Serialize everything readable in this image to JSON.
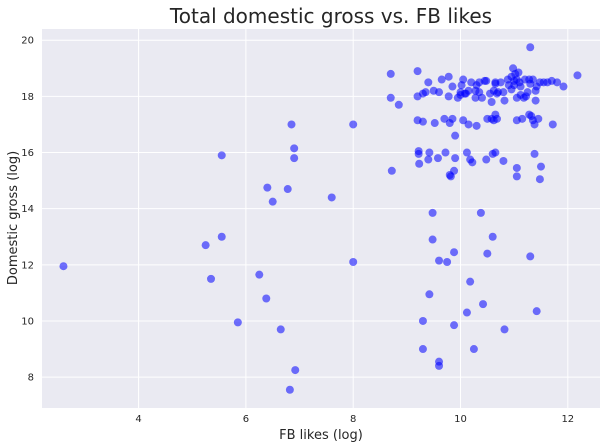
{
  "chart_data": {
    "type": "scatter",
    "title": "Total domestic gross vs. FB likes",
    "xlabel": "FB likes (log)",
    "ylabel": "Domestic gross (log)",
    "xlim": [
      2.2,
      12.6
    ],
    "ylim": [
      6.9,
      20.4
    ],
    "xticks": [
      "4",
      "6",
      "8",
      "10",
      "12"
    ],
    "yticks": [
      "8",
      "10",
      "12",
      "14",
      "16",
      "18",
      "20"
    ],
    "grid": true,
    "colors": {
      "background": "#EAEAF2",
      "grid": "#FFFFFF",
      "points": "#0000FF"
    },
    "series": [
      {
        "points": [
          [
            2.6,
            11.95
          ],
          [
            5.25,
            12.7
          ],
          [
            5.35,
            11.5
          ],
          [
            5.55,
            13.0
          ],
          [
            5.55,
            15.9
          ],
          [
            5.85,
            9.95
          ],
          [
            6.25,
            11.65
          ],
          [
            6.38,
            10.8
          ],
          [
            6.4,
            14.75
          ],
          [
            6.5,
            14.25
          ],
          [
            6.65,
            9.7
          ],
          [
            6.78,
            14.7
          ],
          [
            6.82,
            7.55
          ],
          [
            6.85,
            17.0
          ],
          [
            6.9,
            16.15
          ],
          [
            6.9,
            15.8
          ],
          [
            6.92,
            8.25
          ],
          [
            7.6,
            14.4
          ],
          [
            8.0,
            12.1
          ],
          [
            8.0,
            17.0
          ],
          [
            8.7,
            18.8
          ],
          [
            8.7,
            17.95
          ],
          [
            8.72,
            15.35
          ],
          [
            8.85,
            17.7
          ],
          [
            9.2,
            18.9
          ],
          [
            9.2,
            18.0
          ],
          [
            9.2,
            17.15
          ],
          [
            9.22,
            16.05
          ],
          [
            9.22,
            15.95
          ],
          [
            9.23,
            15.6
          ],
          [
            9.3,
            18.1
          ],
          [
            9.3,
            17.1
          ],
          [
            9.3,
            10.0
          ],
          [
            9.3,
            9.0
          ],
          [
            9.35,
            18.15
          ],
          [
            9.4,
            18.5
          ],
          [
            9.4,
            15.75
          ],
          [
            9.42,
            16.0
          ],
          [
            9.42,
            10.95
          ],
          [
            9.48,
            13.85
          ],
          [
            9.48,
            12.9
          ],
          [
            9.5,
            18.2
          ],
          [
            9.52,
            17.05
          ],
          [
            9.58,
            15.8
          ],
          [
            9.6,
            18.15
          ],
          [
            9.6,
            12.15
          ],
          [
            9.6,
            8.55
          ],
          [
            9.6,
            8.4
          ],
          [
            9.65,
            18.6
          ],
          [
            9.7,
            17.2
          ],
          [
            9.72,
            16.0
          ],
          [
            9.75,
            12.1
          ],
          [
            9.78,
            18.7
          ],
          [
            9.78,
            18.0
          ],
          [
            9.8,
            17.05
          ],
          [
            9.8,
            15.2
          ],
          [
            9.82,
            15.15
          ],
          [
            9.85,
            18.35
          ],
          [
            9.85,
            17.2
          ],
          [
            9.88,
            15.35
          ],
          [
            9.88,
            9.85
          ],
          [
            9.88,
            12.45
          ],
          [
            9.9,
            16.6
          ],
          [
            9.9,
            15.8
          ],
          [
            9.95,
            17.95
          ],
          [
            10.0,
            18.15
          ],
          [
            10.0,
            18.05
          ],
          [
            10.02,
            18.4
          ],
          [
            10.05,
            18.6
          ],
          [
            10.05,
            17.15
          ],
          [
            10.08,
            18.1
          ],
          [
            10.1,
            18.1
          ],
          [
            10.12,
            16.0
          ],
          [
            10.12,
            10.3
          ],
          [
            10.15,
            18.2
          ],
          [
            10.15,
            17.0
          ],
          [
            10.18,
            15.75
          ],
          [
            10.18,
            11.4
          ],
          [
            10.2,
            18.5
          ],
          [
            10.22,
            15.65
          ],
          [
            10.25,
            9.0
          ],
          [
            10.28,
            18.2
          ],
          [
            10.28,
            17.95
          ],
          [
            10.3,
            18.4
          ],
          [
            10.3,
            16.95
          ],
          [
            10.35,
            18.5
          ],
          [
            10.35,
            18.15
          ],
          [
            10.38,
            13.85
          ],
          [
            10.4,
            17.95
          ],
          [
            10.42,
            10.6
          ],
          [
            10.45,
            18.55
          ],
          [
            10.48,
            18.55
          ],
          [
            10.48,
            15.75
          ],
          [
            10.5,
            17.2
          ],
          [
            10.5,
            12.4
          ],
          [
            10.55,
            18.1
          ],
          [
            10.58,
            17.8
          ],
          [
            10.58,
            17.2
          ],
          [
            10.6,
            15.95
          ],
          [
            10.6,
            13.0
          ],
          [
            10.62,
            18.2
          ],
          [
            10.62,
            17.15
          ],
          [
            10.65,
            18.5
          ],
          [
            10.65,
            18.45
          ],
          [
            10.65,
            17.35
          ],
          [
            10.65,
            16.0
          ],
          [
            10.68,
            18.1
          ],
          [
            10.68,
            17.2
          ],
          [
            10.7,
            18.15
          ],
          [
            10.75,
            18.5
          ],
          [
            10.8,
            18.15
          ],
          [
            10.8,
            15.7
          ],
          [
            10.82,
            17.85
          ],
          [
            10.82,
            9.7
          ],
          [
            10.88,
            18.6
          ],
          [
            10.9,
            18.4
          ],
          [
            10.95,
            18.7
          ],
          [
            10.95,
            18.25
          ],
          [
            10.98,
            19.0
          ],
          [
            11.0,
            18.55
          ],
          [
            11.0,
            18.4
          ],
          [
            11.02,
            18.8
          ],
          [
            11.05,
            18.6
          ],
          [
            11.05,
            17.95
          ],
          [
            11.05,
            17.15
          ],
          [
            11.05,
            15.45
          ],
          [
            11.05,
            15.15
          ],
          [
            11.08,
            18.85
          ],
          [
            11.1,
            18.5
          ],
          [
            11.12,
            18.35
          ],
          [
            11.12,
            18.05
          ],
          [
            11.15,
            17.2
          ],
          [
            11.18,
            17.95
          ],
          [
            11.2,
            18.6
          ],
          [
            11.22,
            18.0
          ],
          [
            11.25,
            18.15
          ],
          [
            11.28,
            18.6
          ],
          [
            11.28,
            17.35
          ],
          [
            11.3,
            18.45
          ],
          [
            11.3,
            19.75
          ],
          [
            11.3,
            12.3
          ],
          [
            11.32,
            17.3
          ],
          [
            11.35,
            18.6
          ],
          [
            11.35,
            17.15
          ],
          [
            11.38,
            15.95
          ],
          [
            11.38,
            17.0
          ],
          [
            11.4,
            18.2
          ],
          [
            11.4,
            17.85
          ],
          [
            11.42,
            18.35
          ],
          [
            11.42,
            10.35
          ],
          [
            11.45,
            17.2
          ],
          [
            11.48,
            18.5
          ],
          [
            11.48,
            15.05
          ],
          [
            11.5,
            15.5
          ],
          [
            11.55,
            18.5
          ],
          [
            11.62,
            18.5
          ],
          [
            11.7,
            18.55
          ],
          [
            11.72,
            17.0
          ],
          [
            11.8,
            18.5
          ],
          [
            11.92,
            18.35
          ],
          [
            12.18,
            18.75
          ]
        ]
      }
    ]
  }
}
